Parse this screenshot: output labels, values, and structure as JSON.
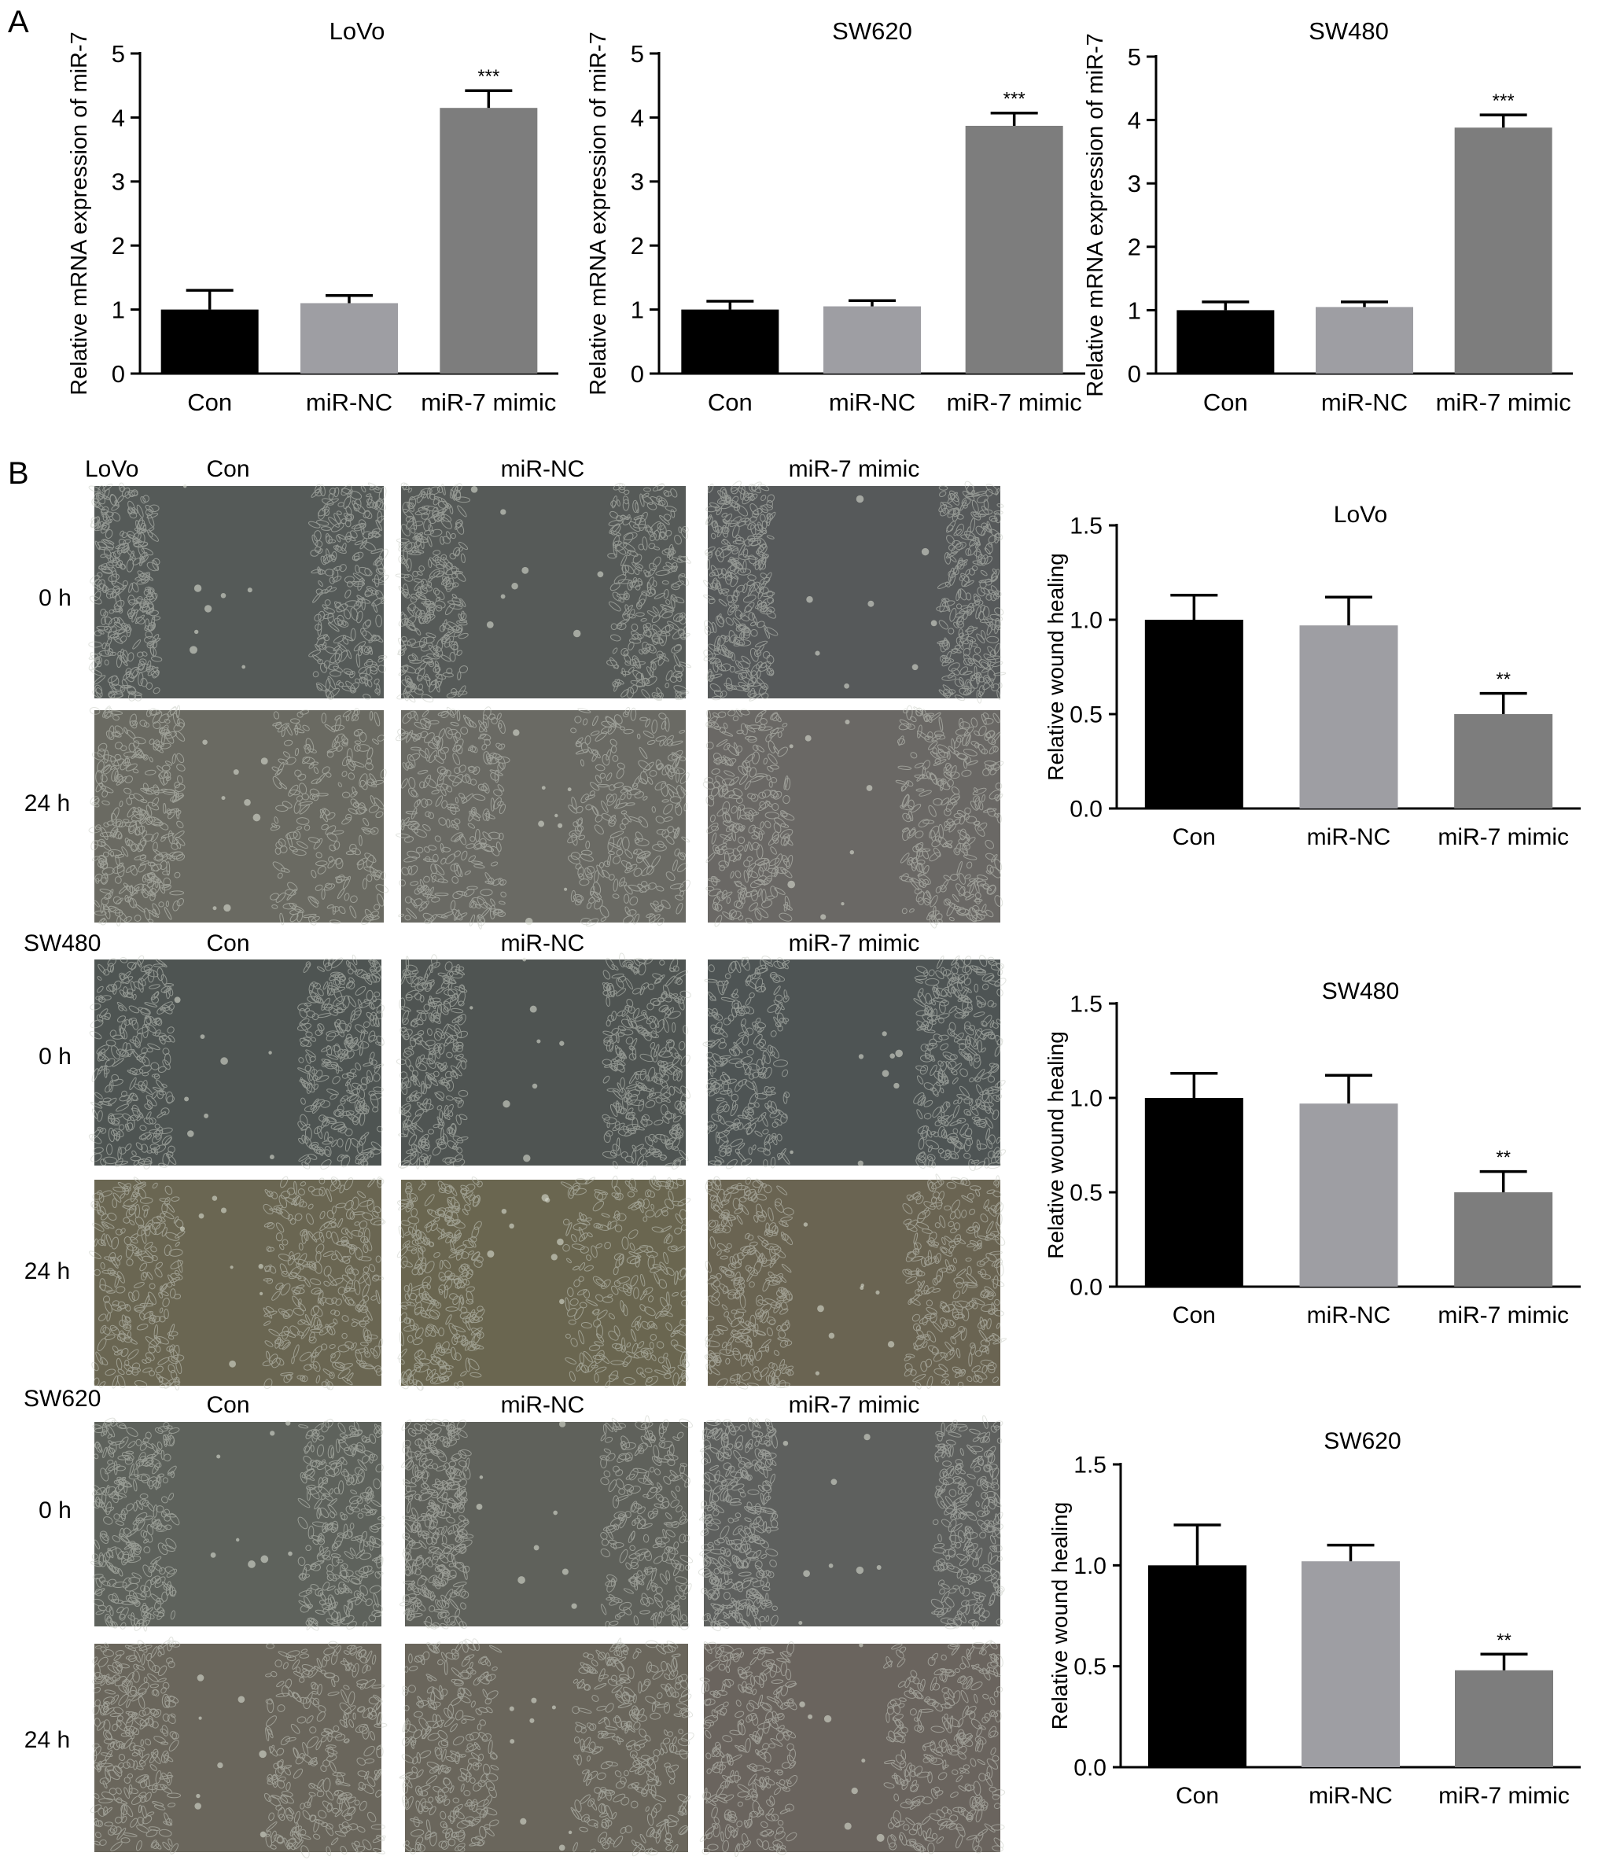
{
  "panel_a": {
    "letter": "A",
    "charts": [
      {
        "id": "a-lovo",
        "title": "LoVo"
      },
      {
        "id": "a-sw620",
        "title": "SW620"
      },
      {
        "id": "a-sw480",
        "title": "SW480"
      }
    ]
  },
  "panel_b": {
    "letter": "B",
    "blocks": [
      {
        "cell_line": "LoVo",
        "columns": [
          "Con",
          "miR-NC",
          "miR-7 mimic"
        ],
        "times": [
          "0 h",
          "24 h"
        ]
      },
      {
        "cell_line": "SW480",
        "columns": [
          "Con",
          "miR-NC",
          "miR-7 mimic"
        ],
        "times": [
          "0 h",
          "24 h"
        ]
      },
      {
        "cell_line": "SW620",
        "columns": [
          "Con",
          "miR-NC",
          "miR-7 mimic"
        ],
        "times": [
          "0 h",
          "24 h"
        ]
      }
    ]
  },
  "chart_data": [
    {
      "type": "bar",
      "title": "LoVo",
      "xlabel": "",
      "ylabel": "Relative mRNA expression of miR-7",
      "categories": [
        "Con",
        "miR-NC",
        "miR-7 mimic"
      ],
      "values": [
        1.0,
        1.1,
        4.15
      ],
      "errors": [
        0.3,
        0.12,
        0.27
      ],
      "annotations": [
        "",
        "",
        "***"
      ],
      "ylim": [
        0,
        5
      ],
      "yticks": [
        "0",
        "1",
        "2",
        "3",
        "4",
        "5"
      ],
      "colors": [
        "#000000",
        "#9e9ea3",
        "#7d7d7d"
      ],
      "grid": false,
      "legend": "none"
    },
    {
      "type": "bar",
      "title": "SW620",
      "xlabel": "",
      "ylabel": "Relative mRNA expression of miR-7",
      "categories": [
        "Con",
        "miR-NC",
        "miR-7 mimic"
      ],
      "values": [
        1.0,
        1.05,
        3.87
      ],
      "errors": [
        0.13,
        0.09,
        0.2
      ],
      "annotations": [
        "",
        "",
        "***"
      ],
      "ylim": [
        0,
        5
      ],
      "yticks": [
        "0",
        "1",
        "2",
        "3",
        "4",
        "5"
      ],
      "colors": [
        "#000000",
        "#9e9ea3",
        "#7d7d7d"
      ],
      "grid": false,
      "legend": "none"
    },
    {
      "type": "bar",
      "title": "SW480",
      "xlabel": "",
      "ylabel": "Relative mRNA expression of miR-7",
      "categories": [
        "Con",
        "miR-NC",
        "miR-7 mimic"
      ],
      "values": [
        1.0,
        1.05,
        3.88
      ],
      "errors": [
        0.13,
        0.08,
        0.2
      ],
      "annotations": [
        "",
        "",
        "***"
      ],
      "ylim": [
        0,
        5
      ],
      "yticks": [
        "0",
        "1",
        "2",
        "3",
        "4",
        "5"
      ],
      "colors": [
        "#000000",
        "#9e9ea3",
        "#7d7d7d"
      ],
      "grid": false,
      "legend": "none"
    },
    {
      "type": "bar",
      "title": "LoVo",
      "xlabel": "",
      "ylabel": "Relative wound healing",
      "categories": [
        "Con",
        "miR-NC",
        "miR-7 mimic"
      ],
      "values": [
        1.0,
        0.97,
        0.5
      ],
      "errors": [
        0.13,
        0.15,
        0.11
      ],
      "annotations": [
        "",
        "",
        "**"
      ],
      "ylim": [
        0,
        1.5
      ],
      "yticks": [
        "0.0",
        "0.5",
        "1.0",
        "1.5"
      ],
      "colors": [
        "#000000",
        "#9e9ea3",
        "#7d7d7d"
      ],
      "grid": false,
      "legend": "none"
    },
    {
      "type": "bar",
      "title": "SW480",
      "xlabel": "",
      "ylabel": "Relative wound healing",
      "categories": [
        "Con",
        "miR-NC",
        "miR-7 mimic"
      ],
      "values": [
        1.0,
        0.97,
        0.5
      ],
      "errors": [
        0.13,
        0.15,
        0.11
      ],
      "annotations": [
        "",
        "",
        "**"
      ],
      "ylim": [
        0,
        1.5
      ],
      "yticks": [
        "0.0",
        "0.5",
        "1.0",
        "1.5"
      ],
      "colors": [
        "#000000",
        "#9e9ea3",
        "#7d7d7d"
      ],
      "grid": false,
      "legend": "none"
    },
    {
      "type": "bar",
      "title": "SW620",
      "xlabel": "",
      "ylabel": "Relative wound healing",
      "categories": [
        "Con",
        "miR-NC",
        "miR-7 mimic"
      ],
      "values": [
        1.0,
        1.02,
        0.48
      ],
      "errors": [
        0.2,
        0.08,
        0.08
      ],
      "annotations": [
        "",
        "",
        "**"
      ],
      "ylim": [
        0,
        1.5
      ],
      "yticks": [
        "0.0",
        "0.5",
        "1.0",
        "1.5"
      ],
      "colors": [
        "#000000",
        "#9e9ea3",
        "#7d7d7d"
      ],
      "grid": false,
      "legend": "none"
    }
  ]
}
